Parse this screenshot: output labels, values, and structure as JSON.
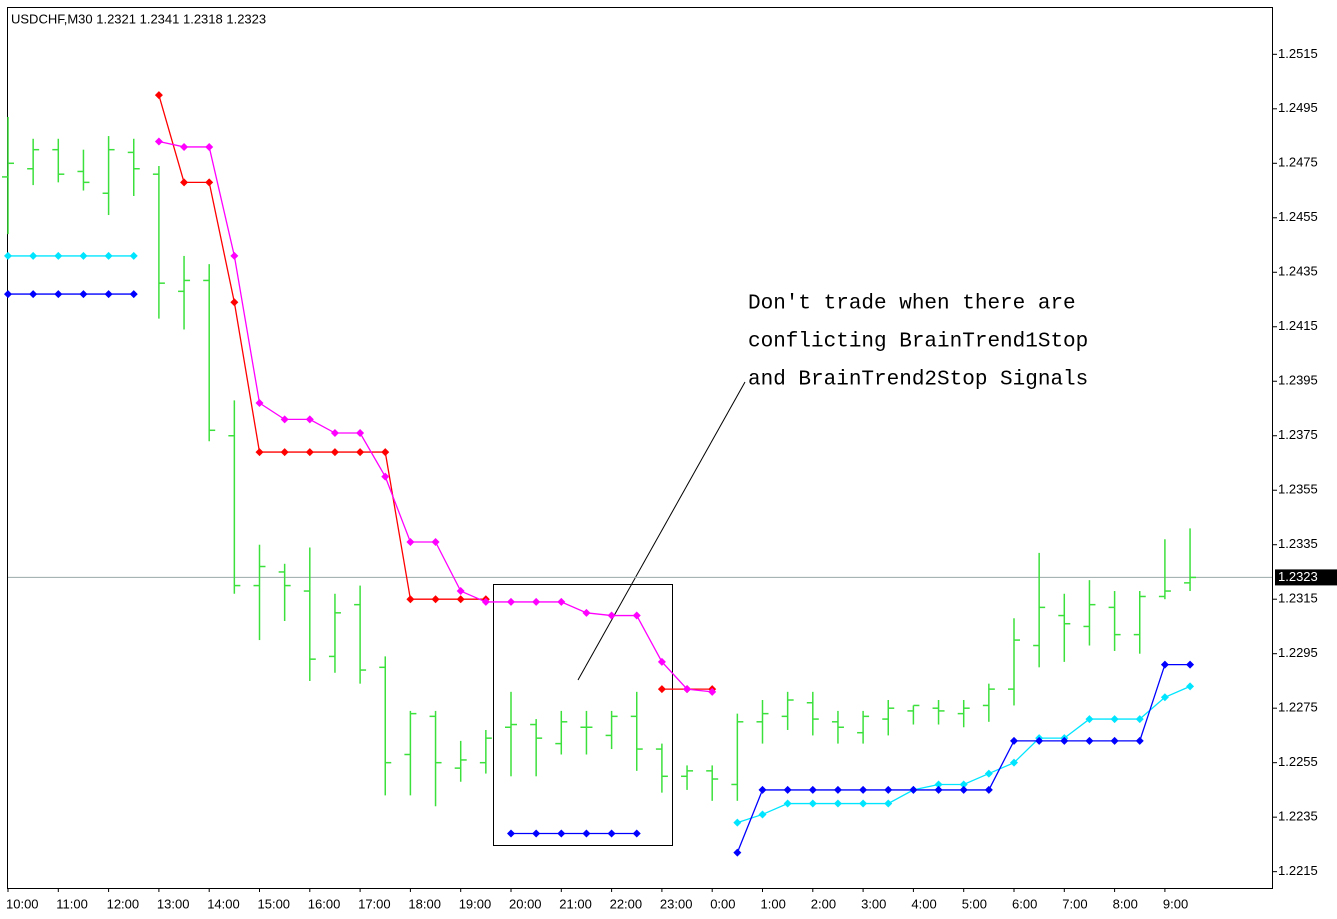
{
  "chart_data": {
    "type": "ohlc",
    "title": "USDCHF,M30  1.2321 1.2341 1.2318 1.2323",
    "annotation": [
      "Don't trade when there are",
      "conflicting BrainTrend1Stop",
      "and BrainTrend2Stop Signals"
    ],
    "categories": [
      "10:00",
      null,
      "11:00",
      null,
      "12:00",
      null,
      "13:00",
      null,
      "14:00",
      null,
      "15:00",
      null,
      "16:00",
      null,
      "17:00",
      null,
      "18:00",
      null,
      "19:00",
      null,
      "20:00",
      null,
      "21:00",
      null,
      "22:00",
      null,
      "23:00",
      null,
      "0:00",
      null,
      "1:00",
      null,
      "2:00",
      null,
      "3:00",
      null,
      "4:00",
      null,
      "5:00",
      null,
      "6:00",
      null,
      "7:00",
      null,
      "8:00",
      null,
      "9:00",
      null
    ],
    "open": [
      1.247,
      1.2473,
      1.248,
      1.2472,
      1.2464,
      1.2479,
      1.2471,
      1.2428,
      1.2432,
      1.2375,
      1.232,
      1.2325,
      1.2318,
      1.2294,
      1.2313,
      1.229,
      1.2258,
      1.2272,
      1.2253,
      1.2255,
      1.2268,
      1.2269,
      1.2262,
      1.2268,
      1.2265,
      1.2272,
      1.226,
      1.225,
      1.2252,
      1.2247,
      1.227,
      1.2272,
      1.2277,
      1.227,
      1.2266,
      1.2271,
      1.2274,
      1.2275,
      1.2273,
      1.2276,
      1.2282,
      1.2298,
      1.2309,
      1.2305,
      1.2312,
      1.2302,
      1.2316,
      1.2321
    ],
    "high": [
      1.2492,
      1.2484,
      1.2484,
      1.248,
      1.2485,
      1.2484,
      1.2474,
      1.2441,
      1.2438,
      1.2388,
      1.2335,
      1.2328,
      1.2334,
      1.2317,
      1.232,
      1.2294,
      1.2274,
      1.2274,
      1.2263,
      1.2267,
      1.2281,
      1.2271,
      1.2274,
      1.2274,
      1.2274,
      1.2281,
      1.2262,
      1.2254,
      1.2254,
      1.2273,
      1.2278,
      1.2281,
      1.2281,
      1.2274,
      1.2274,
      1.2278,
      1.2276,
      1.2278,
      1.2278,
      1.2284,
      1.2308,
      1.2332,
      1.2317,
      1.2322,
      1.2318,
      1.2318,
      1.2337,
      1.2341
    ],
    "low": [
      1.2449,
      1.2467,
      1.2468,
      1.2465,
      1.2456,
      1.2463,
      1.2418,
      1.2414,
      1.2373,
      1.2317,
      1.23,
      1.2307,
      1.2285,
      1.2288,
      1.2284,
      1.2243,
      1.2243,
      1.2239,
      1.2248,
      1.2251,
      1.225,
      1.225,
      1.2258,
      1.2258,
      1.226,
      1.2252,
      1.2244,
      1.2245,
      1.2241,
      1.2241,
      1.2262,
      1.2267,
      1.2265,
      1.2262,
      1.2262,
      1.2265,
      1.2269,
      1.2269,
      1.2268,
      1.227,
      1.2276,
      1.229,
      1.2292,
      1.2298,
      1.2296,
      1.2295,
      1.2315,
      1.2318
    ],
    "close": [
      1.2475,
      1.248,
      1.2471,
      1.2468,
      1.248,
      1.2473,
      1.2431,
      1.2432,
      1.2377,
      1.232,
      1.2327,
      1.232,
      1.2293,
      1.231,
      1.2289,
      1.2255,
      1.2273,
      1.2255,
      1.2256,
      1.2264,
      1.2269,
      1.2264,
      1.227,
      1.2268,
      1.2272,
      1.226,
      1.225,
      1.2252,
      1.2249,
      1.227,
      1.2273,
      1.2278,
      1.2271,
      1.2268,
      1.2272,
      1.2275,
      1.2276,
      1.2274,
      1.2275,
      1.2282,
      1.23,
      1.2312,
      1.2306,
      1.2313,
      1.2302,
      1.2316,
      1.2318,
      1.2323
    ],
    "color": "#3ce03c",
    "series": [
      {
        "color": "#ff0000",
        "values": [
          null,
          null,
          null,
          null,
          null,
          null,
          1.25,
          1.2468,
          1.2468,
          1.2424,
          1.2369,
          1.2369,
          1.2369,
          1.2369,
          1.2369,
          1.2369,
          1.2315,
          1.2315,
          1.2315,
          1.2315,
          null,
          null,
          null,
          null,
          null,
          null,
          1.2282,
          1.2282,
          1.2282,
          null,
          null,
          null,
          null,
          null,
          null,
          null,
          null,
          null,
          null,
          null,
          null,
          null,
          null,
          null,
          null,
          null,
          null,
          null
        ]
      },
      {
        "color": "#ff00ff",
        "values": [
          null,
          null,
          null,
          null,
          null,
          null,
          1.2483,
          1.2481,
          1.2481,
          1.2441,
          1.2387,
          1.2381,
          1.2381,
          1.2376,
          1.2376,
          1.236,
          1.2336,
          1.2336,
          1.2318,
          1.2314,
          1.2314,
          1.2314,
          1.2314,
          1.231,
          1.2309,
          1.2309,
          1.2292,
          1.2282,
          1.2281,
          null,
          null,
          null,
          null,
          null,
          null,
          null,
          null,
          null,
          null,
          null,
          null,
          null,
          null,
          null,
          null,
          null,
          null,
          null
        ]
      },
      {
        "color": "#00e5ff",
        "values": [
          1.2441,
          1.2441,
          1.2441,
          1.2441,
          1.2441,
          1.2441,
          null,
          null,
          null,
          null,
          null,
          null,
          null,
          null,
          null,
          null,
          null,
          null,
          null,
          null,
          null,
          null,
          null,
          null,
          null,
          null,
          null,
          null,
          null,
          1.2233,
          1.2236,
          1.224,
          1.224,
          1.224,
          1.224,
          1.224,
          1.2245,
          1.2247,
          1.2247,
          1.2251,
          1.2255,
          1.2264,
          1.2264,
          1.2271,
          1.2271,
          1.2271,
          1.2279,
          1.2283
        ]
      },
      {
        "color": "#0000ff",
        "values": [
          1.2427,
          1.2427,
          1.2427,
          1.2427,
          1.2427,
          1.2427,
          null,
          null,
          null,
          null,
          null,
          null,
          null,
          null,
          null,
          null,
          null,
          null,
          null,
          null,
          1.2229,
          1.2229,
          1.2229,
          1.2229,
          1.2229,
          1.2229,
          null,
          null,
          null,
          1.2222,
          1.2245,
          1.2245,
          1.2245,
          1.2245,
          1.2245,
          1.2245,
          1.2245,
          1.2245,
          1.2245,
          1.2245,
          1.2263,
          1.2263,
          1.2263,
          1.2263,
          1.2263,
          1.2263,
          1.2291,
          1.2291
        ]
      }
    ],
    "current_price": 1.2323,
    "ylim": [
      1.2209,
      1.2532
    ],
    "yticks": [
      1.2515,
      1.2495,
      1.2475,
      1.2455,
      1.2435,
      1.2415,
      1.2395,
      1.2375,
      1.2355,
      1.2335,
      1.2315,
      1.2295,
      1.2275,
      1.2255,
      1.2235,
      1.2215
    ]
  }
}
